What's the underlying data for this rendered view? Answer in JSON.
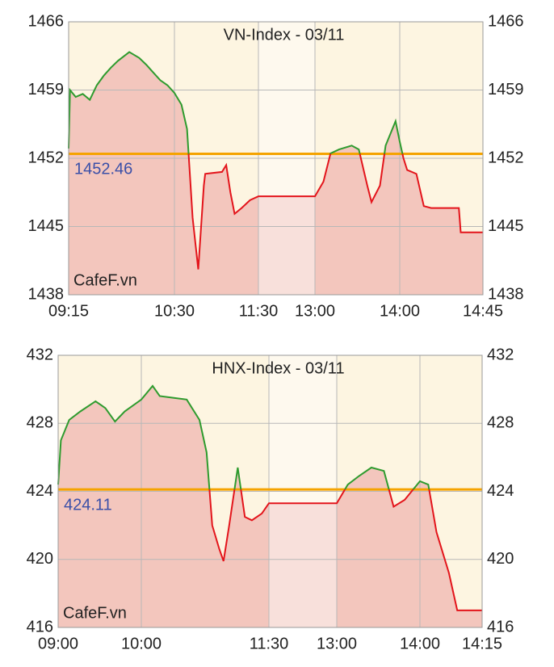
{
  "chart_data": [
    {
      "type": "line",
      "title": "VN-Index - 03/11",
      "watermark": "CafeF.vn",
      "x": [
        "09:15",
        "09:16",
        "09:20",
        "09:25",
        "09:30",
        "09:35",
        "09:40",
        "09:45",
        "09:50",
        "09:58",
        "10:05",
        "10:10",
        "10:15",
        "10:20",
        "10:25",
        "10:30",
        "10:35",
        "10:39",
        "10:43",
        "10:47",
        "10:51",
        "10:52",
        "11:04",
        "11:07",
        "11:10",
        "11:13",
        "11:18",
        "11:24",
        "11:30",
        "13:00",
        "13:06",
        "13:11",
        "13:17",
        "13:26",
        "13:31",
        "13:37",
        "13:40",
        "13:46",
        "13:50",
        "13:57",
        "14:00",
        "14:02",
        "14:04",
        "14:09",
        "14:13",
        "14:17",
        "14:32",
        "14:33",
        "14:45"
      ],
      "values": [
        1453.0,
        1459.0,
        1458.3,
        1458.6,
        1458.0,
        1459.5,
        1460.5,
        1461.3,
        1462.0,
        1462.9,
        1462.3,
        1461.6,
        1460.8,
        1460.0,
        1459.5,
        1458.7,
        1457.5,
        1455.0,
        1445.9,
        1440.6,
        1449.2,
        1450.4,
        1450.6,
        1451.3,
        1448.5,
        1446.3,
        1446.9,
        1447.7,
        1448.1,
        1448.1,
        1449.6,
        1452.5,
        1452.9,
        1453.3,
        1452.9,
        1449.2,
        1447.5,
        1449.2,
        1453.3,
        1455.8,
        1453.7,
        1452.0,
        1450.8,
        1450.4,
        1447.1,
        1446.9,
        1446.9,
        1444.4,
        1444.4
      ],
      "reference": 1452.46,
      "ylim": [
        1438,
        1466
      ],
      "yticks": [
        1438,
        1445,
        1452,
        1459,
        1466
      ],
      "xticks": [
        "09:15",
        "10:30",
        "11:30",
        "13:00",
        "14:00",
        "14:45"
      ],
      "break": [
        "11:30",
        "13:00"
      ],
      "color_up": "#2e9b2e",
      "color_down": "#e3141b",
      "area_color": "#f3c6bd",
      "reference_color": "#f5a300",
      "reference_label_color": "#3a4fa8",
      "background": "#fdf5e1",
      "grid": true
    },
    {
      "type": "line",
      "title": "HNX-Index - 03/11",
      "watermark": "CafeF.vn",
      "x": [
        "09:00",
        "09:02",
        "09:08",
        "09:16",
        "09:27",
        "09:34",
        "09:41",
        "09:48",
        "10:00",
        "10:08",
        "10:13",
        "10:23",
        "10:32",
        "10:41",
        "10:46",
        "10:50",
        "10:55",
        "10:58",
        "11:02",
        "11:08",
        "11:13",
        "11:18",
        "11:25",
        "11:30",
        "13:00",
        "13:08",
        "13:16",
        "13:25",
        "13:34",
        "13:41",
        "13:49",
        "14:00",
        "14:02",
        "14:04",
        "14:07",
        "14:09",
        "14:15"
      ],
      "values": [
        424.4,
        427.0,
        428.2,
        428.7,
        429.3,
        428.9,
        428.1,
        428.7,
        429.4,
        430.2,
        429.6,
        429.5,
        429.4,
        428.2,
        426.3,
        422.0,
        420.6,
        419.9,
        422.0,
        425.4,
        422.5,
        422.3,
        422.7,
        423.3,
        423.3,
        424.4,
        424.9,
        425.4,
        425.2,
        423.1,
        423.5,
        424.6,
        424.4,
        421.6,
        419.2,
        417.0,
        417.0
      ],
      "reference": 424.11,
      "ylim": [
        416,
        432
      ],
      "yticks": [
        416,
        420,
        424,
        428,
        432
      ],
      "xticks": [
        "09:00",
        "10:00",
        "11:30",
        "13:00",
        "14:00",
        "14:15"
      ],
      "break": [
        "11:30",
        "13:00"
      ],
      "color_up": "#2e9b2e",
      "color_down": "#e3141b",
      "area_color": "#f3c6bd",
      "reference_color": "#f5a300",
      "reference_label_color": "#3a4fa8",
      "background": "#fdf5e1",
      "grid": true
    }
  ]
}
